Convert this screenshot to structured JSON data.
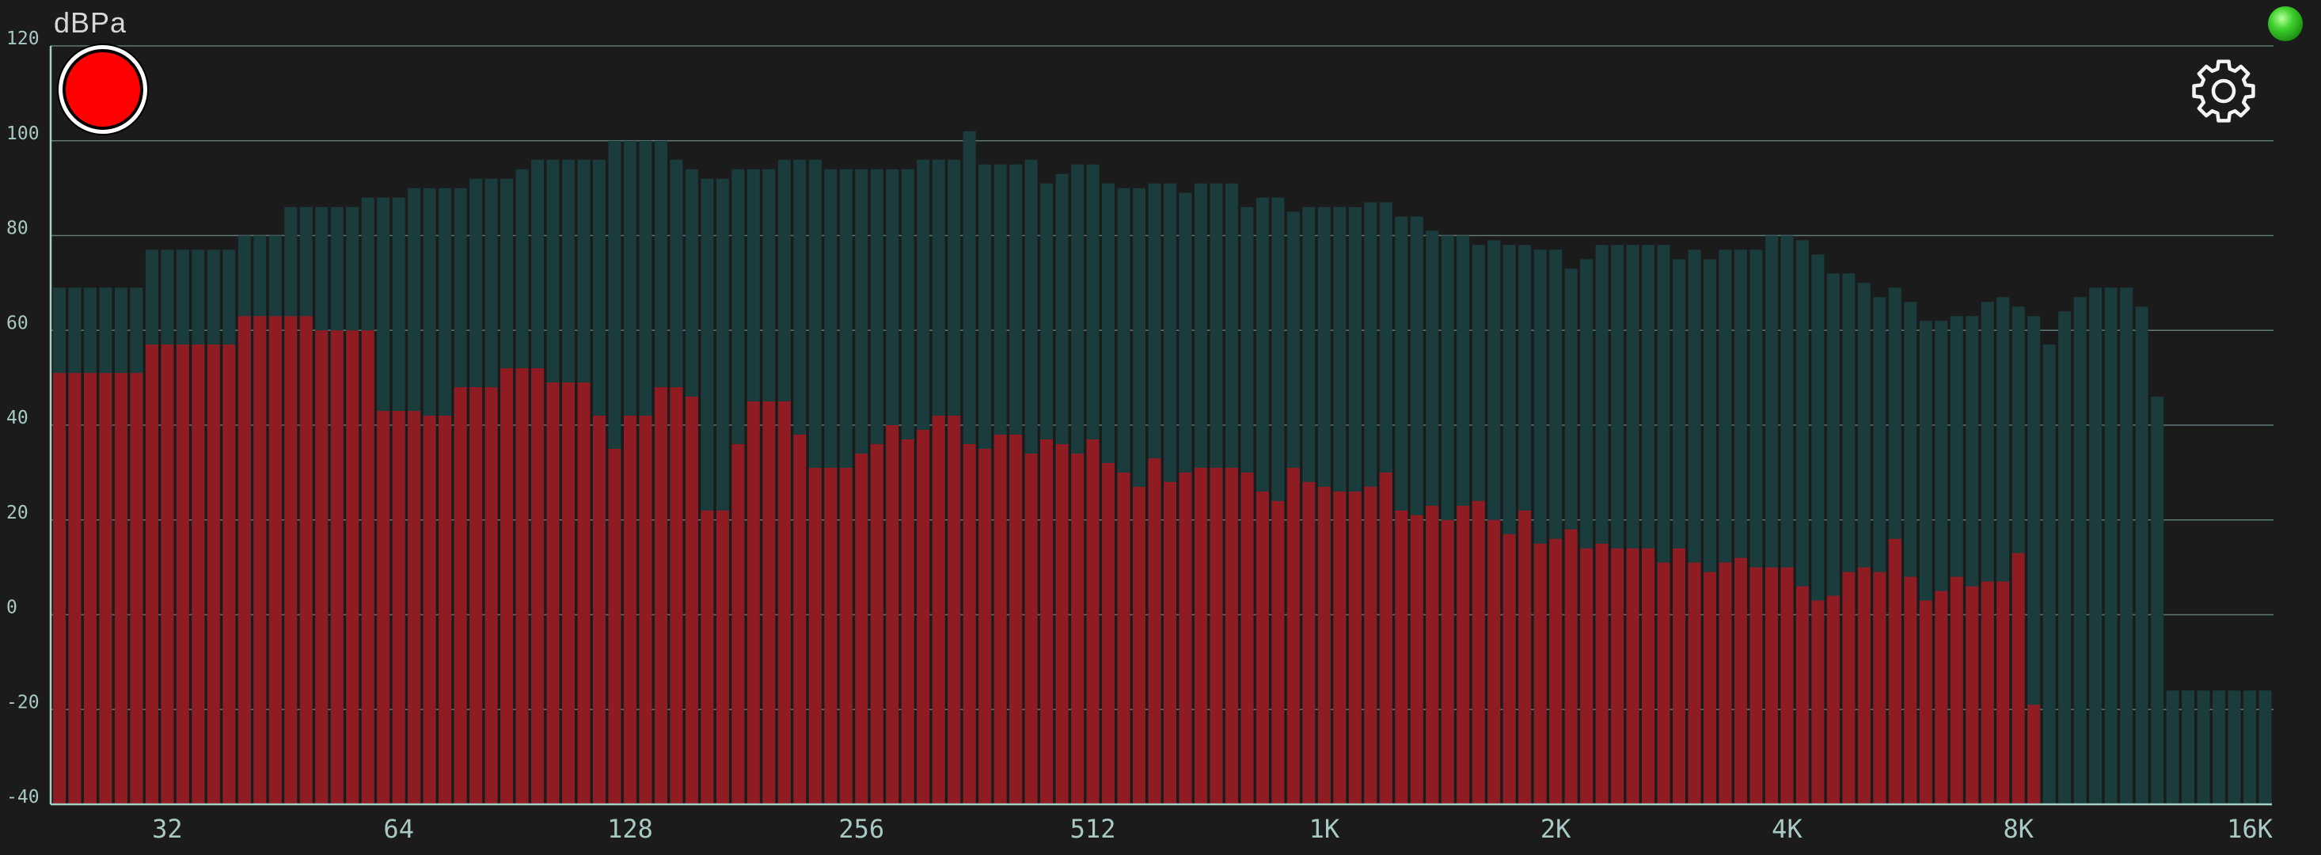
{
  "unit_label": "dBPa",
  "colors": {
    "background": "#1b1b1b",
    "grid": "#5e7b77",
    "axis": "#a6cfc8",
    "peak_bar": "#1a3c3c",
    "level_bar": "#8f1c22",
    "record": "#ff0000",
    "status_led": "#3fd12e"
  },
  "icons": {
    "record": "record-button-icon",
    "status": "status-led-icon",
    "settings": "gear-icon"
  },
  "chart_data": {
    "type": "bar",
    "subtype": "rta-spectrum",
    "title": "",
    "xlabel": "",
    "ylabel": "dBPa",
    "ylim": [
      -40,
      120
    ],
    "yticks": [
      -40,
      -20,
      0,
      20,
      40,
      60,
      80,
      100,
      120
    ],
    "yticks_labels": [
      "-40",
      "-20",
      "0",
      "20",
      "40",
      "60",
      "80",
      "100",
      "120"
    ],
    "xscale": "log",
    "xlim_bands": [
      0,
      144
    ],
    "xtick_labels": [
      "32",
      "64",
      "128",
      "256",
      "512",
      "1K",
      "2K",
      "4K",
      "8K",
      "16K"
    ],
    "xtick_bands": [
      7,
      22,
      37,
      52,
      67,
      82,
      97,
      112,
      127,
      142
    ],
    "grid": true,
    "band_count": 144,
    "series": [
      {
        "role": "peak",
        "values": [
          69,
          69,
          69,
          69,
          69,
          69,
          77,
          77,
          77,
          77,
          77,
          77,
          80,
          80,
          80,
          86,
          86,
          86,
          86,
          86,
          88,
          88,
          88,
          90,
          90,
          90,
          90,
          92,
          92,
          92,
          94,
          96,
          96,
          96,
          96,
          96,
          100,
          100,
          100,
          100,
          96,
          94,
          92,
          92,
          94,
          94,
          94,
          96,
          96,
          96,
          94,
          94,
          94,
          94,
          94,
          94,
          96,
          96,
          96,
          102,
          95,
          95,
          95,
          96,
          91,
          93,
          95,
          95,
          91,
          90,
          90,
          91,
          91,
          89,
          91,
          91,
          91,
          86,
          88,
          88,
          85,
          86,
          86,
          86,
          86,
          87,
          87,
          84,
          84,
          81,
          80,
          80,
          78,
          79,
          78,
          78,
          77,
          77,
          73,
          75,
          78,
          78,
          78,
          78,
          78,
          75,
          77,
          75,
          77,
          77,
          77,
          80,
          80,
          79,
          76,
          72,
          72,
          70,
          67,
          69,
          66,
          62,
          62,
          63,
          63,
          66,
          67,
          65,
          63,
          57,
          64,
          67,
          69,
          69,
          69,
          65,
          46,
          -16,
          -16,
          -16,
          -16,
          -16,
          -16,
          -16
        ],
        "note_bands": "band values in dBPa"
      },
      {
        "role": "level",
        "values": [
          51,
          51,
          51,
          51,
          51,
          51,
          57,
          57,
          57,
          57,
          57,
          57,
          63,
          63,
          63,
          63,
          63,
          60,
          60,
          60,
          60,
          43,
          43,
          43,
          42,
          42,
          48,
          48,
          48,
          52,
          52,
          52,
          49,
          49,
          49,
          42,
          35,
          42,
          42,
          48,
          48,
          46,
          22,
          22,
          36,
          45,
          45,
          45,
          38,
          31,
          31,
          31,
          34,
          36,
          40,
          37,
          39,
          42,
          42,
          36,
          35,
          38,
          38,
          34,
          37,
          36,
          34,
          37,
          32,
          30,
          27,
          33,
          28,
          30,
          31,
          31,
          31,
          30,
          26,
          24,
          31,
          28,
          27,
          26,
          26,
          27,
          30,
          22,
          21,
          23,
          20,
          23,
          24,
          20,
          17,
          22,
          15,
          16,
          18,
          14,
          15,
          14,
          14,
          14,
          11,
          14,
          11,
          9,
          11,
          12,
          10,
          10,
          10,
          6,
          3,
          4,
          9,
          10,
          9,
          16,
          8,
          3,
          5,
          8,
          6,
          7,
          7,
          13,
          -19,
          -40,
          -40,
          -40,
          -40,
          -40,
          -40,
          -40,
          -40,
          -40,
          -40,
          -40,
          -40,
          -40,
          -40,
          -40
        ]
      }
    ]
  }
}
